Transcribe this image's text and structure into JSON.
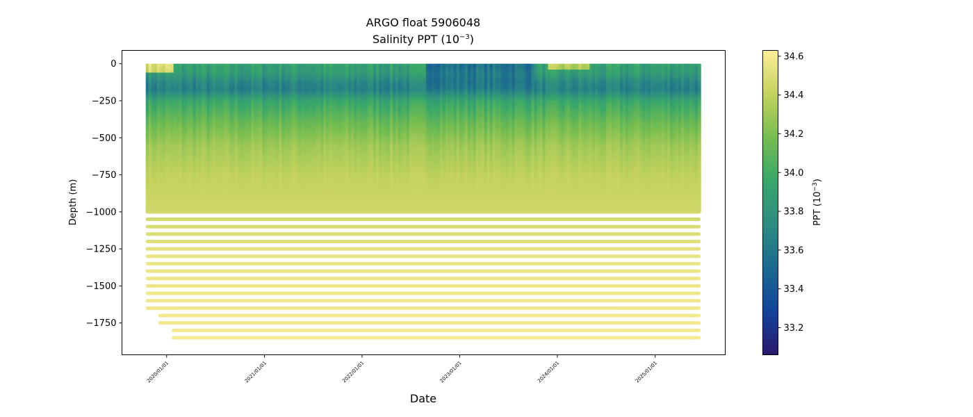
{
  "chart_data": {
    "type": "scatter",
    "title": "ARGO float 5906048",
    "subtitle_main": "Salinity PPT (10",
    "subtitle_exp": "−3",
    "subtitle_close": ")",
    "xlabel": "Date",
    "ylabel": "Depth (m)",
    "x_ticks": [
      "2020/01/01",
      "2021/01/01",
      "2022/01/01",
      "2023/01/01",
      "2024/01/01",
      "2025/01/01"
    ],
    "y_ticks": [
      0,
      -250,
      -500,
      -750,
      -1000,
      -1250,
      -1500,
      -1750
    ],
    "y_tick_labels": [
      "0",
      "−250",
      "−500",
      "−750",
      "−1000",
      "−1250",
      "−1500",
      "−1750"
    ],
    "xlim": [
      "2019-07-18",
      "2025-09-20"
    ],
    "ylim": [
      -1965,
      90
    ],
    "data_x_range": [
      "2019-10-15",
      "2025-06-20"
    ],
    "data_depth_range": [
      -1875,
      0
    ],
    "colormap": "haline",
    "colormap_colors": [
      "#2a186c",
      "#12439b",
      "#1b6a8f",
      "#2e8c82",
      "#38a76a",
      "#76bd50",
      "#c4d25d",
      "#fdee99"
    ],
    "colorbar": {
      "label_main": "PPT (10",
      "label_exp": "−3",
      "label_close": ")",
      "min": 33.06,
      "max": 34.63,
      "ticks": [
        33.2,
        33.4,
        33.6,
        33.8,
        34.0,
        34.2,
        34.4,
        34.6
      ],
      "tick_labels": [
        "33.2",
        "33.4",
        "33.6",
        "33.8",
        "34.0",
        "34.2",
        "34.4",
        "34.6"
      ]
    },
    "grid": false,
    "depth_salinity_profile": [
      {
        "depth": 0,
        "salinity": 33.9
      },
      {
        "depth": -60,
        "salinity": 33.85
      },
      {
        "depth": -120,
        "salinity": 33.7
      },
      {
        "depth": -170,
        "salinity": 33.65
      },
      {
        "depth": -250,
        "salinity": 33.95
      },
      {
        "depth": -400,
        "salinity": 34.15
      },
      {
        "depth": -550,
        "salinity": 34.3
      },
      {
        "depth": -750,
        "salinity": 34.4
      },
      {
        "depth": -1000,
        "salinity": 34.45
      },
      {
        "depth": -1300,
        "salinity": 34.55
      },
      {
        "depth": -1875,
        "salinity": 34.6
      }
    ]
  }
}
